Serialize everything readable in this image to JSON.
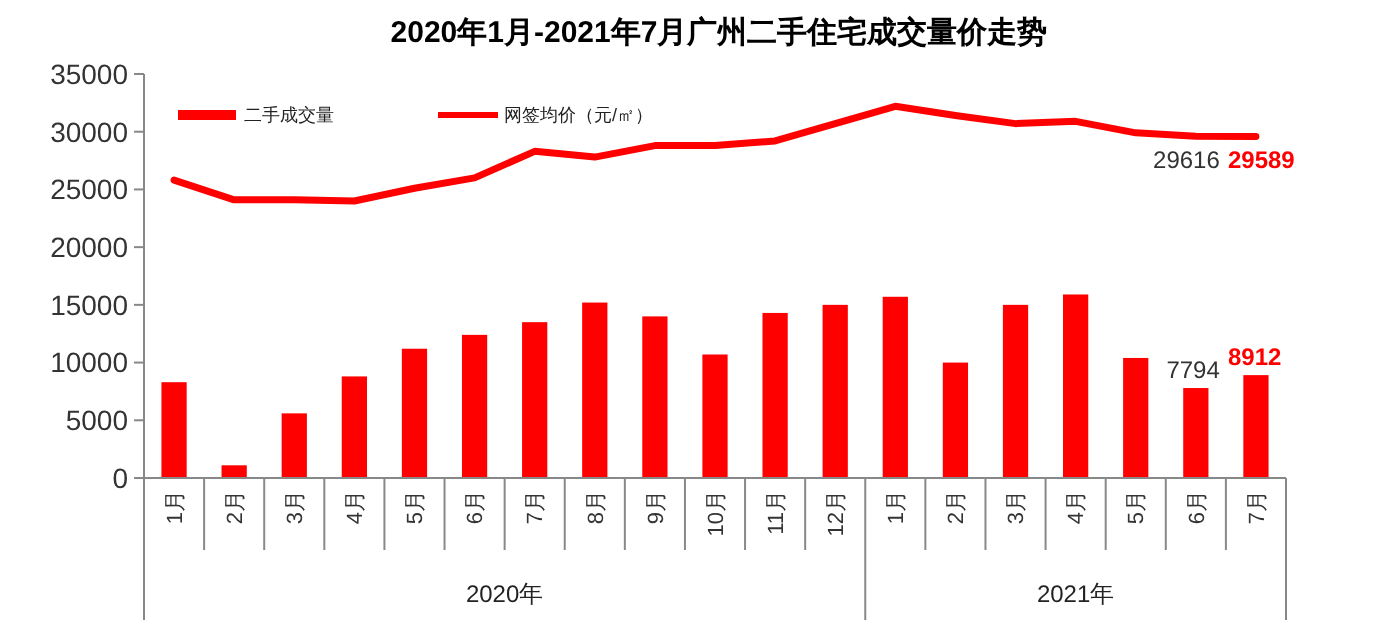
{
  "chart_data": {
    "type": "bar",
    "title": "2020年1月-2021年7月广州二手住宅成交量价走势",
    "categories": [
      "1月",
      "2月",
      "3月",
      "4月",
      "5月",
      "6月",
      "7月",
      "8月",
      "9月",
      "10月",
      "11月",
      "12月",
      "1月",
      "2月",
      "3月",
      "4月",
      "5月",
      "6月",
      "7月"
    ],
    "series": [
      {
        "name": "二手成交量",
        "color": "#ff0000",
        "values": [
          8300,
          1100,
          5600,
          8800,
          11200,
          12400,
          13500,
          15200,
          14000,
          10700,
          14300,
          15000,
          15700,
          10000,
          15000,
          15900,
          10400,
          7794,
          8912
        ],
        "value_labels": [
          null,
          null,
          null,
          null,
          null,
          null,
          null,
          null,
          null,
          null,
          null,
          null,
          null,
          null,
          null,
          null,
          null,
          "7794",
          "8912"
        ]
      },
      {
        "name": "网签均价（元/㎡）",
        "type": "line",
        "color": "#ff0000",
        "values": [
          25800,
          24100,
          24100,
          24000,
          25100,
          26000,
          28300,
          27800,
          28800,
          28800,
          29200,
          30700,
          32200,
          31400,
          30700,
          30900,
          29900,
          29616,
          29589
        ],
        "value_labels": [
          null,
          null,
          null,
          null,
          null,
          null,
          null,
          null,
          null,
          null,
          null,
          null,
          null,
          null,
          null,
          null,
          null,
          "29616",
          "29589"
        ]
      }
    ],
    "ylim": [
      0,
      35000
    ],
    "yticks": [
      0,
      5000,
      10000,
      15000,
      20000,
      25000,
      30000,
      35000
    ],
    "grid": false,
    "legend": "top left",
    "marker": "none",
    "line_style": "solid",
    "annotations": [
      "2020年",
      "2021年"
    ]
  }
}
